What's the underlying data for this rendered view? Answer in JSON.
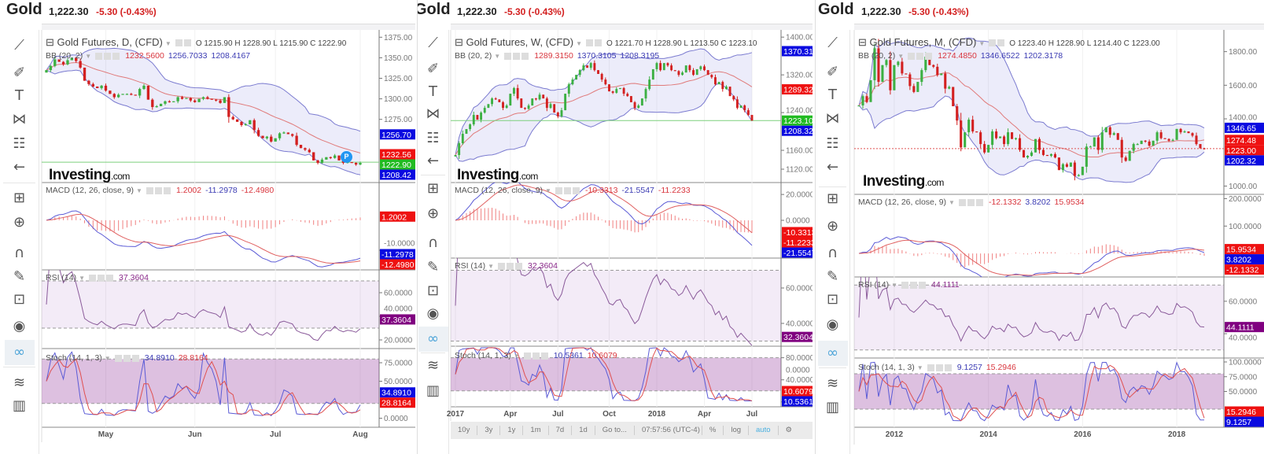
{
  "toolbar_icons": [
    "trend-line-icon",
    "brush-icon",
    "text-icon",
    "pattern-icon",
    "fib-icon",
    "back-arrow-icon",
    "measure-icon",
    "zoom-in-icon",
    "magnet-icon",
    "lock-drawings-icon",
    "unlock-icon",
    "eye-icon",
    "link-icon",
    "layers-icon",
    "trash-icon"
  ],
  "colors": {
    "up": "#3cb043",
    "down": "#d32020",
    "bb_band": "#7b7bd0",
    "bb_mid": "#e07a7a",
    "macd": "#5b5bd6",
    "signal": "#e06060",
    "rsi": "#8a5a9a",
    "stoch_k": "#5b5bd6",
    "stoch_d": "#e05050",
    "tag_blue": "#0a0ae0",
    "tag_red": "#ee1111",
    "tag_green": "#22bb22",
    "tag_purple": "#800080"
  },
  "panels": [
    {
      "header": {
        "symbol": "Gold",
        "price": "1,222.30",
        "change": "-5.30 (-0.43%)"
      },
      "title": "Gold Futures, D, (CFD)",
      "ohlc": {
        "o": "O 1215.90",
        "h": "H 1228.90",
        "l": "L 1215.90",
        "c": "C 1222.90"
      },
      "bb": {
        "label": "BB (20, 2)",
        "values": [
          "1232.5600",
          "1256.7033",
          "1208.4167"
        ]
      },
      "macd": {
        "label": "MACD (12, 26, close, 9)",
        "values": [
          "1.2002",
          "-11.2978",
          "-12.4980"
        ]
      },
      "rsi": {
        "label": "RSI (14)",
        "value": "37.3604"
      },
      "stoch": {
        "label": "Stoch (14, 1, 3)",
        "values": [
          "34.8910",
          "28.8164"
        ]
      },
      "logo": {
        "main": "Investing",
        "suffix": ".com"
      },
      "marker": "P",
      "chart_data": {
        "type": "candlestick",
        "interval": "D",
        "closes": [
          1335,
          1340,
          1348,
          1345,
          1342,
          1347,
          1350,
          1346,
          1338,
          1322,
          1318,
          1315,
          1313,
          1316,
          1310,
          1306,
          1302,
          1305,
          1306,
          1306,
          1305,
          1304,
          1312,
          1316,
          1299,
          1290,
          1291,
          1294,
          1297,
          1296,
          1297,
          1302,
          1300,
          1301,
          1298,
          1296,
          1300,
          1302,
          1300,
          1299,
          1298,
          1295,
          1302,
          1278,
          1275,
          1272,
          1268,
          1269,
          1274,
          1262,
          1255,
          1252,
          1254,
          1248,
          1252,
          1258,
          1259,
          1257,
          1255,
          1244,
          1240,
          1238,
          1235,
          1225,
          1222,
          1226,
          1229,
          1228,
          1231,
          1225,
          1222,
          1223,
          1222,
          1220,
          1222
        ],
        "last_price": 1222.9,
        "price_range": [
          1200,
          1382
        ],
        "macd_range": [
          -16,
          12
        ],
        "rsi_range": [
          14,
          78
        ],
        "stoch_range": [
          -10,
          92
        ],
        "price_ticks": [
          "1375.00",
          "1350.00",
          "1325.00",
          "1300.00",
          "1275.00"
        ],
        "macd_ticks": [
          "-10.0000"
        ],
        "rsi_ticks": [
          "60.0000",
          "40.0000",
          "20.0000"
        ],
        "stoch_ticks": [
          "75.0000",
          "50.0000",
          "0.0000"
        ],
        "x_ticks": [
          {
            "label": "May",
            "index": 14
          },
          {
            "label": "Jun",
            "index": 35
          },
          {
            "label": "Jul",
            "index": 54
          },
          {
            "label": "Aug",
            "index": 74
          }
        ],
        "price_tags": [
          {
            "text": "1256.70",
            "color": "blue"
          },
          {
            "text": "1232.56",
            "color": "red"
          },
          {
            "text": "1222.90",
            "color": "green"
          },
          {
            "text": "1208.42",
            "color": "blue"
          }
        ],
        "macd_tags": [
          {
            "text": "1.2002",
            "color": "red"
          },
          {
            "text": "-11.2978",
            "color": "blue"
          },
          {
            "text": "-12.4980",
            "color": "red"
          }
        ],
        "rsi_tags": [
          {
            "text": "37.3604",
            "color": "purple"
          }
        ],
        "stoch_tags": [
          {
            "text": "34.8910",
            "color": "blue"
          },
          {
            "text": "28.8164",
            "color": "red"
          }
        ]
      }
    },
    {
      "header": {
        "symbol": "Gold",
        "price": "1,222.30",
        "change": "-5.30 (-0.43%)"
      },
      "title": "Gold Futures, W, (CFD)",
      "ohlc": {
        "o": "O 1221.70",
        "h": "H 1228.90",
        "l": "L 1213.50",
        "c": "C 1223.10"
      },
      "bb": {
        "label": "BB (20, 2)",
        "values": [
          "1289.3150",
          "1370.3105",
          "1208.3195"
        ]
      },
      "macd": {
        "label": "MACD (12, 26, close, 9)",
        "values": [
          "-10.3313",
          "-21.5547",
          "-11.2233"
        ]
      },
      "rsi": {
        "label": "RSI (14)",
        "value": "32.3604"
      },
      "stoch": {
        "label": "Stoch (14, 1, 3)",
        "values": [
          "10.5361",
          "10.6079"
        ]
      },
      "logo": {
        "main": "Investing",
        "suffix": ".com"
      },
      "bottom_bar": {
        "ranges": [
          "10y",
          "3y",
          "1y",
          "1m",
          "7d",
          "1d"
        ],
        "goto": "Go to...",
        "time": "07:57:56",
        "tz": "(UTC-4)",
        "percent": "%",
        "log": "log",
        "auto": "auto"
      },
      "chart_data": {
        "type": "candlestick",
        "interval": "W",
        "closes": [
          1150,
          1175,
          1195,
          1205,
          1215,
          1235,
          1225,
          1240,
          1250,
          1258,
          1270,
          1268,
          1262,
          1250,
          1255,
          1280,
          1292,
          1270,
          1250,
          1248,
          1255,
          1270,
          1268,
          1278,
          1270,
          1250,
          1258,
          1240,
          1232,
          1245,
          1280,
          1300,
          1310,
          1320,
          1330,
          1340,
          1335,
          1345,
          1330,
          1322,
          1310,
          1300,
          1285,
          1282,
          1290,
          1292,
          1280,
          1275,
          1262,
          1250,
          1255,
          1270,
          1290,
          1310,
          1332,
          1345,
          1330,
          1345,
          1340,
          1330,
          1328,
          1320,
          1325,
          1340,
          1330,
          1320,
          1332,
          1338,
          1330,
          1320,
          1315,
          1300,
          1305,
          1290,
          1295,
          1275,
          1268,
          1250,
          1255,
          1245,
          1235,
          1223
        ],
        "last_price": 1223.1,
        "price_range": [
          1095,
          1412
        ],
        "macd_range": [
          -28,
          28
        ],
        "rsi_range": [
          28,
          76
        ],
        "stoch_range": [
          -6,
          98
        ],
        "price_ticks": [
          "1400.00",
          "1320.00",
          "1240.00",
          "1160.00",
          "1120.00"
        ],
        "macd_ticks": [
          "20.0000",
          "0.0000"
        ],
        "rsi_ticks": [
          "60.0000",
          "40.0000"
        ],
        "stoch_ticks": [
          "80.0000",
          "40.0000",
          "0.0000"
        ],
        "x_ticks": [
          {
            "label": "2017",
            "index": 0,
            "bold": true
          },
          {
            "label": "Apr",
            "index": 15
          },
          {
            "label": "Jul",
            "index": 28
          },
          {
            "label": "Oct",
            "index": 42
          },
          {
            "label": "2018",
            "index": 55,
            "bold": true
          },
          {
            "label": "Apr",
            "index": 68
          },
          {
            "label": "Jul",
            "index": 81
          }
        ],
        "price_tags": [
          {
            "text": "1370.31",
            "color": "blue"
          },
          {
            "text": "1289.32",
            "color": "red"
          },
          {
            "text": "1223.10",
            "color": "green"
          },
          {
            "text": "1208.32",
            "color": "blue"
          }
        ],
        "macd_tags": [
          {
            "text": "-10.3313",
            "color": "red"
          },
          {
            "text": "-11.2233",
            "color": "red"
          },
          {
            "text": "-21.5547",
            "color": "blue"
          }
        ],
        "rsi_tags": [
          {
            "text": "32.3604",
            "color": "purple"
          }
        ],
        "stoch_tags": [
          {
            "text": "10.6079",
            "color": "red"
          },
          {
            "text": "10.5361",
            "color": "blue"
          }
        ]
      }
    },
    {
      "header": {
        "symbol": "Gold",
        "price": "1,222.30",
        "change": "-5.30 (-0.43%)"
      },
      "title": "Gold Futures, M, (CFD)",
      "ohlc": {
        "o": "O 1223.40",
        "h": "H 1228.90",
        "l": "L 1214.40",
        "c": "C 1223.00"
      },
      "bb": {
        "label": "BB (20, 2)",
        "values": [
          "1274.4850",
          "1346.6522",
          "1202.3178"
        ]
      },
      "macd": {
        "label": "MACD (12, 26, close, 9)",
        "values": [
          "-12.1332",
          "3.8202",
          "15.9534"
        ]
      },
      "rsi": {
        "label": "RSI (14)",
        "value": "44.1111"
      },
      "stoch": {
        "label": "Stoch (14, 1, 3)",
        "values": [
          "9.1257",
          "15.2946"
        ]
      },
      "logo": {
        "main": "Investing",
        "suffix": ".com"
      },
      "chart_data": {
        "type": "candlestick",
        "interval": "M",
        "closes": [
          1480,
          1535,
          1500,
          1630,
          1820,
          1620,
          1720,
          1750,
          1570,
          1720,
          1740,
          1670,
          1665,
          1595,
          1560,
          1620,
          1690,
          1770,
          1720,
          1710,
          1660,
          1670,
          1580,
          1590,
          1475,
          1390,
          1230,
          1320,
          1395,
          1325,
          1320,
          1250,
          1200,
          1245,
          1325,
          1285,
          1295,
          1250,
          1320,
          1280,
          1285,
          1215,
          1170,
          1180,
          1200,
          1280,
          1215,
          1185,
          1180,
          1190,
          1170,
          1095,
          1130,
          1115,
          1140,
          1060,
          1065,
          1115,
          1235,
          1235,
          1290,
          1215,
          1320,
          1350,
          1305,
          1315,
          1275,
          1170,
          1150,
          1210,
          1250,
          1250,
          1270,
          1265,
          1240,
          1270,
          1320,
          1285,
          1280,
          1270,
          1275,
          1340,
          1320,
          1325,
          1315,
          1300,
          1250,
          1225,
          1223
        ],
        "last_price": 1223.0,
        "price_range": [
          960,
          1920
        ],
        "macd_range": [
          -80,
          210
        ],
        "rsi_range": [
          26,
          74
        ],
        "stoch_range": [
          -8,
          104
        ],
        "price_ticks": [
          "1800.00",
          "1600.00",
          "1400.00",
          "1000.00"
        ],
        "macd_ticks": [
          "200.0000",
          "100.0000"
        ],
        "rsi_ticks": [
          "60.0000",
          "40.0000"
        ],
        "stoch_ticks": [
          "100.0000",
          "75.0000",
          "50.0000"
        ],
        "x_ticks": [
          {
            "label": "2012",
            "index": 9
          },
          {
            "label": "2014",
            "index": 33
          },
          {
            "label": "2016",
            "index": 57
          },
          {
            "label": "2018",
            "index": 81
          }
        ],
        "price_tags": [
          {
            "text": "1346.65",
            "color": "blue"
          },
          {
            "text": "1274.48",
            "color": "red"
          },
          {
            "text": "1223.00",
            "color": "red"
          },
          {
            "text": "1202.32",
            "color": "blue"
          }
        ],
        "macd_tags": [
          {
            "text": "15.9534",
            "color": "red"
          },
          {
            "text": "3.8202",
            "color": "blue"
          },
          {
            "text": "-12.1332",
            "color": "red"
          }
        ],
        "rsi_tags": [
          {
            "text": "44.1111",
            "color": "purple"
          }
        ],
        "stoch_tags": [
          {
            "text": "15.2946",
            "color": "red"
          },
          {
            "text": "9.1257",
            "color": "blue"
          }
        ]
      }
    }
  ]
}
